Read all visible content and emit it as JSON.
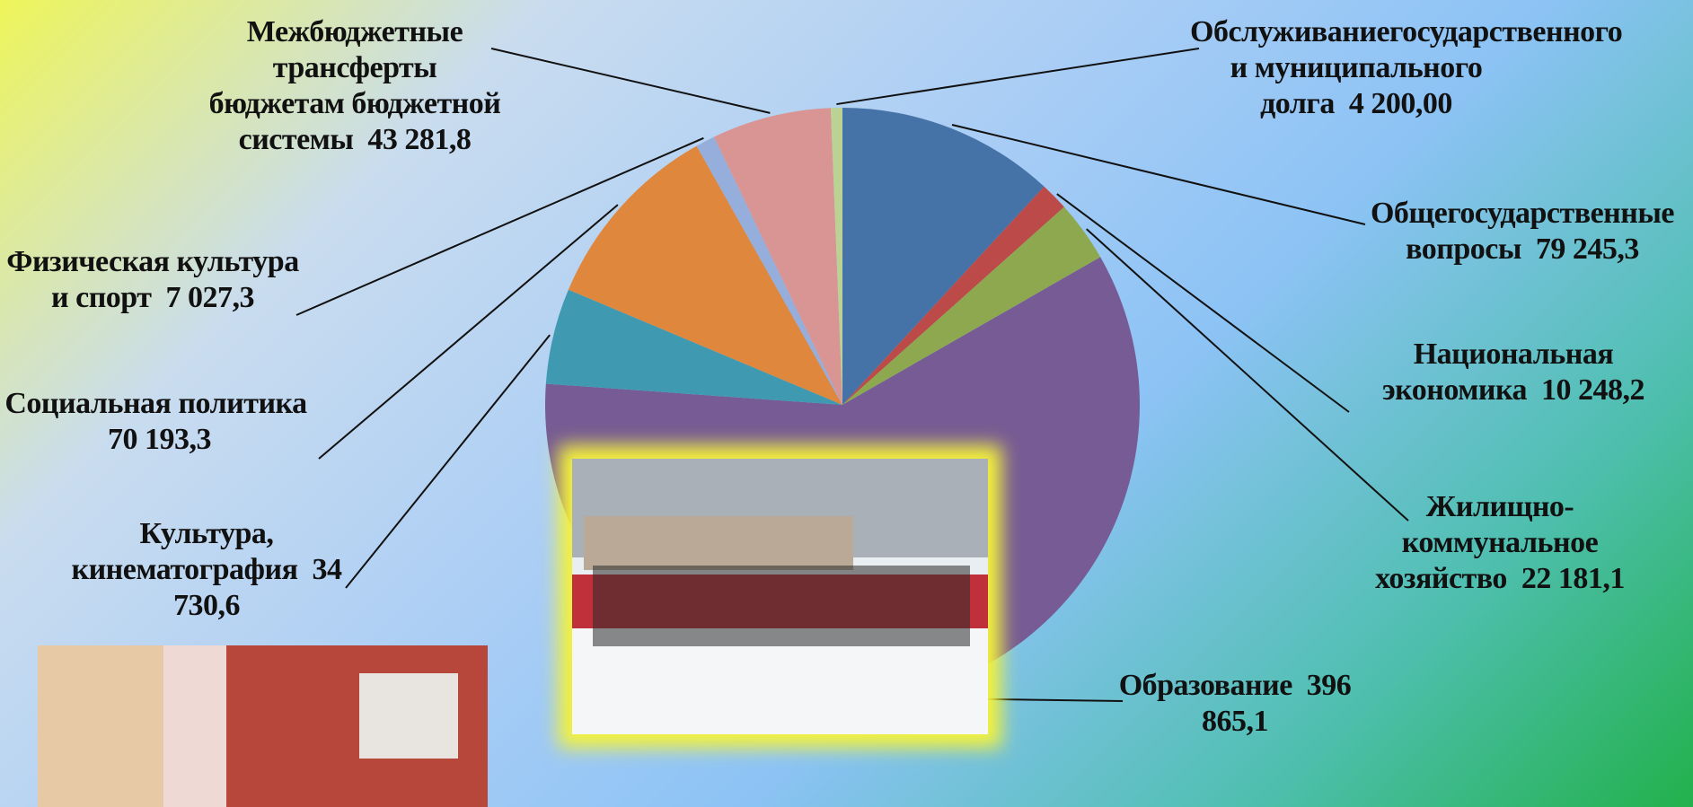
{
  "chart_data": {
    "type": "pie",
    "categories": [
      "Общегосударственные вопросы",
      "Национальная экономика",
      "Жилищно-коммунальное хозяйство",
      "Образование",
      "Культура, кинематография",
      "Социальная политика",
      "Физическая культура и спорт",
      "Межбюджетные трансферты бюджетам бюджетной системы",
      "Обслуживаниегосударственного и муниципального долга"
    ],
    "values": [
      79245.3,
      10248.2,
      22181.1,
      396865.1,
      34730.6,
      70193.3,
      7027.3,
      43281.8,
      4200.0
    ],
    "value_labels": [
      "79 245,3",
      "10 248,2",
      "22 181,1",
      "396 865,1",
      "34 730,6",
      "70 193,3",
      "7 027,3",
      "43 281,8",
      "4 200,00"
    ],
    "colors": [
      "#4573a7",
      "#bc4a48",
      "#8ea84f",
      "#765b94",
      "#3f9ab1",
      "#de873d",
      "#95aedb",
      "#d89594",
      "#bcd194"
    ]
  }
}
